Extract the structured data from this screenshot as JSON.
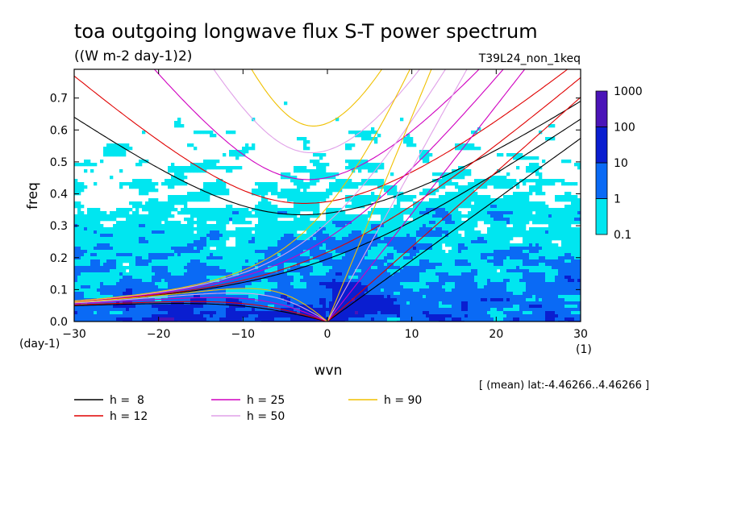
{
  "chart_data": {
    "type": "heatmap",
    "title": "toa outgoing longwave flux S-T power spectrum",
    "units": "((W m-2 day-1)2)",
    "run_label": "T39L24_non_1keq",
    "xlabel": "wvn",
    "ylabel": "freq",
    "x_units": "(1)",
    "y_units": "(day-1)",
    "xlim": [
      -30,
      30
    ],
    "ylim": [
      0,
      0.79
    ],
    "x_ticks": [
      -30,
      -20,
      -10,
      0,
      10,
      20,
      30
    ],
    "y_ticks": [
      0.0,
      0.1,
      0.2,
      0.3,
      0.4,
      0.5,
      0.6,
      0.7
    ],
    "annotation": "[ (mean) lat:-4.46266..4.46266 ]",
    "colorbar": {
      "levels": [
        "0.1",
        "1",
        "10",
        "100",
        "1000"
      ],
      "colors": [
        "#00e6f0",
        "#0a6af5",
        "#0a1ed0",
        "#4b14b8"
      ]
    },
    "shaded_regions": [
      {
        "level": "0.1-1",
        "region": "broad background, strongest for freq < 0.5"
      },
      {
        "level": "1-10",
        "region": "westward low-frequency band and eastward Kelvin region"
      },
      {
        "level": "10-100",
        "region": "near wvn 0-8, freq 0-0.15"
      },
      {
        "level": "100-1000",
        "region": "small patches near wvn 2-4, freq 0.02-0.07"
      }
    ],
    "dispersion_curves": [
      {
        "name": "h =  8",
        "equivalent_depth": 8,
        "color": "#000000"
      },
      {
        "name": "h = 12",
        "equivalent_depth": 12,
        "color": "#e00000"
      },
      {
        "name": "h = 25",
        "equivalent_depth": 25,
        "color": "#d000c0"
      },
      {
        "name": "h = 50",
        "equivalent_depth": 50,
        "color": "#e0a0e8"
      },
      {
        "name": "h = 90",
        "equivalent_depth": 90,
        "color": "#f0c000"
      }
    ]
  }
}
